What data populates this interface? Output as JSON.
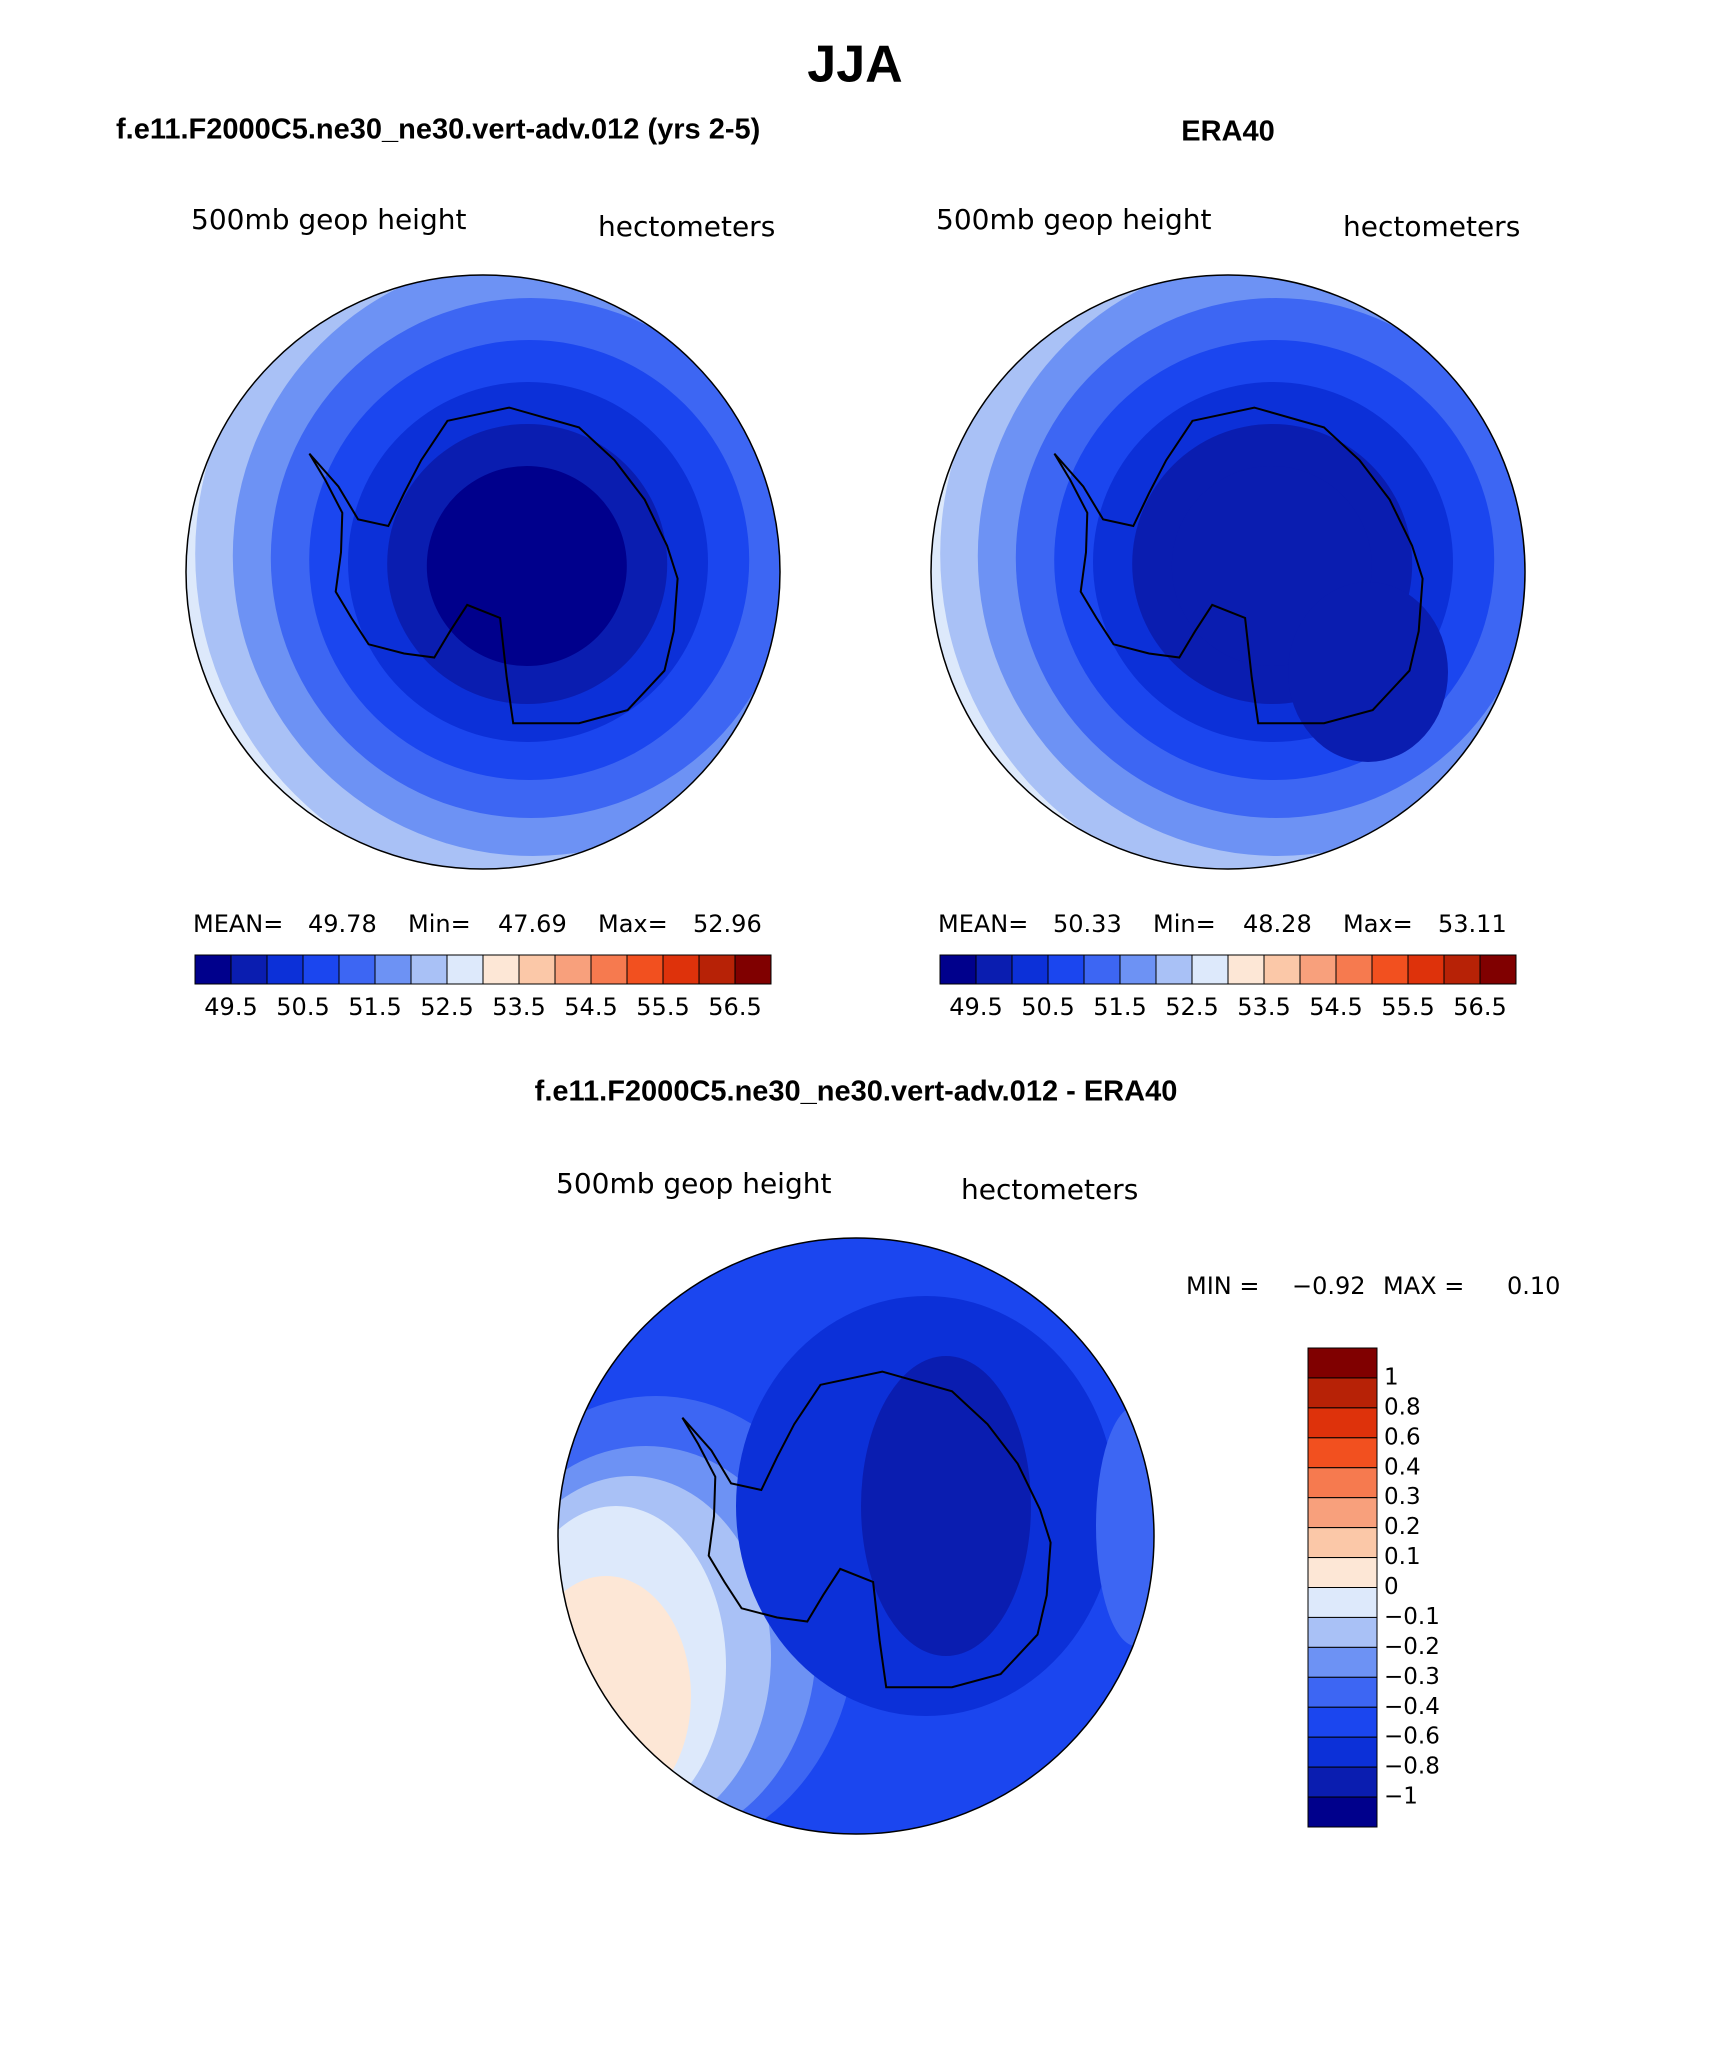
{
  "title": "JJA",
  "panels": [
    {
      "title": "f.e11.F2000C5.ne30_ne30.vert-adv.012 (yrs 2-5)",
      "variable": "500mb geop height",
      "units": "hectometers",
      "stats": {
        "mean_label": "MEAN=",
        "mean": "49.78",
        "min_label": "Min=",
        "min": "47.69",
        "max_label": "Max=",
        "max": "52.96"
      }
    },
    {
      "title": "ERA40",
      "variable": "500mb geop height",
      "units": "hectometers",
      "stats": {
        "mean_label": "MEAN=",
        "mean": "50.33",
        "min_label": "Min=",
        "min": "48.28",
        "max_label": "Max=",
        "max": "53.11"
      }
    }
  ],
  "colorbar": {
    "colors": [
      "#00008c",
      "#0a1db0",
      "#0c30d8",
      "#1b46ef",
      "#3d66f3",
      "#6d92f4",
      "#a9c1f6",
      "#dde9fb",
      "#fde7d6",
      "#fbc8a8",
      "#f8a07c",
      "#f67a4f",
      "#f2501f",
      "#de320b",
      "#b72206",
      "#800000"
    ],
    "labels": [
      "49.5",
      "50.5",
      "51.5",
      "52.5",
      "53.5",
      "54.5",
      "55.5",
      "56.5"
    ]
  },
  "diff": {
    "title": "f.e11.F2000C5.ne30_ne30.vert-adv.012 - ERA40",
    "variable": "500mb geop height",
    "units": "hectometers",
    "min_label": "MIN =",
    "min": "−0.92",
    "max_label": "MAX =",
    "max": "0.10",
    "colorbar": {
      "labels": [
        "1",
        "0.8",
        "0.6",
        "0.4",
        "0.3",
        "0.2",
        "0.1",
        "0",
        "−0.1",
        "−0.2",
        "−0.3",
        "−0.4",
        "−0.6",
        "−0.8",
        "−1"
      ]
    }
  }
}
